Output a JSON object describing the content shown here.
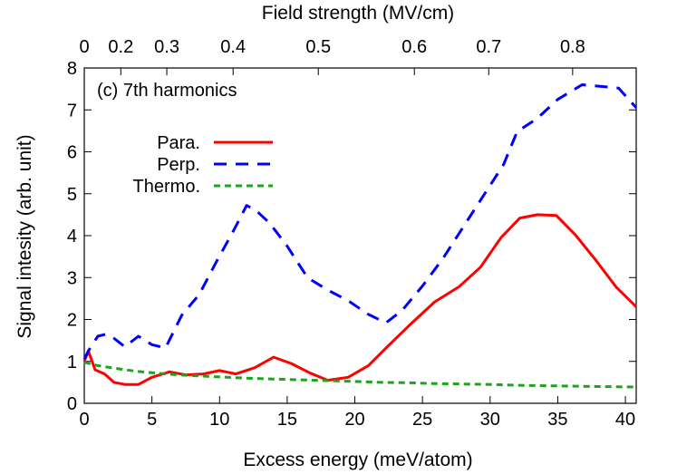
{
  "chart_data": {
    "type": "line",
    "annotation": "(c) 7th harmonics",
    "xlabel": "Excess energy (meV/atom)",
    "ylabel": "Signal intesity (arb. unit)",
    "top_axis_label": "Field strength (MV/cm)",
    "xlim": [
      0,
      40.8
    ],
    "ylim": [
      0,
      8
    ],
    "xticks": [
      0,
      5,
      10,
      15,
      20,
      25,
      30,
      35,
      40
    ],
    "yticks": [
      0,
      1,
      2,
      3,
      4,
      5,
      6,
      7,
      8
    ],
    "top_ticks": [
      {
        "label": "0",
        "x": 0.0
      },
      {
        "label": "0.2",
        "x": 2.7
      },
      {
        "label": "0.3",
        "x": 6.1
      },
      {
        "label": "0.4",
        "x": 11.0
      },
      {
        "label": "0.5",
        "x": 17.3
      },
      {
        "label": "0.6",
        "x": 24.4
      },
      {
        "label": "0.7",
        "x": 29.9
      },
      {
        "label": "0.8",
        "x": 36.1
      }
    ],
    "grid": false,
    "legend_position": "upper-left",
    "series": [
      {
        "name": "Para.",
        "color": "#ff0000",
        "dash": "solid",
        "x": [
          0,
          0.3,
          0.8,
          1.5,
          2.2,
          3.0,
          4.0,
          5.0,
          6.3,
          7.5,
          8.8,
          10.0,
          11.2,
          12.6,
          14.0,
          15.3,
          16.7,
          18.0,
          19.5,
          21.0,
          22.4,
          24.0,
          25.9,
          27.7,
          29.3,
          30.8,
          32.2,
          33.5,
          34.9,
          36.3,
          37.8,
          39.3,
          40.8
        ],
        "y": [
          1.0,
          1.25,
          0.8,
          0.7,
          0.5,
          0.45,
          0.45,
          0.62,
          0.75,
          0.68,
          0.7,
          0.78,
          0.7,
          0.85,
          1.1,
          0.95,
          0.72,
          0.55,
          0.62,
          0.9,
          1.35,
          1.85,
          2.42,
          2.78,
          3.25,
          3.95,
          4.42,
          4.5,
          4.48,
          4.02,
          3.42,
          2.78,
          2.3
        ]
      },
      {
        "name": "Perp.",
        "color": "#0000ff",
        "dash": "dashed",
        "x": [
          0,
          0.3,
          1.0,
          1.6,
          2.2,
          3.0,
          4.0,
          5.0,
          6.0,
          7.2,
          8.5,
          9.8,
          11.0,
          12.0,
          12.7,
          13.7,
          15.0,
          16.5,
          18.0,
          19.5,
          21.0,
          22.3,
          23.5,
          25.0,
          26.5,
          28.0,
          29.5,
          31.0,
          32.0,
          33.5,
          35.0,
          36.8,
          38.5,
          39.5,
          40.8
        ],
        "y": [
          1.05,
          1.25,
          1.6,
          1.65,
          1.55,
          1.35,
          1.6,
          1.4,
          1.32,
          2.1,
          2.6,
          3.4,
          4.1,
          4.72,
          4.6,
          4.3,
          3.75,
          3.0,
          2.7,
          2.45,
          2.12,
          1.92,
          2.22,
          2.8,
          3.45,
          4.2,
          4.95,
          5.7,
          6.48,
          6.8,
          7.25,
          7.6,
          7.55,
          7.52,
          7.05
        ]
      },
      {
        "name": "Thermo.",
        "color": "#22a022",
        "dash": "dotted",
        "x": [
          0,
          1,
          2,
          3,
          4,
          5,
          6,
          8,
          10,
          12,
          14,
          16,
          18,
          20,
          22,
          24,
          26,
          28,
          30,
          32,
          34,
          36,
          38,
          40.8
        ],
        "y": [
          0.98,
          0.9,
          0.85,
          0.8,
          0.76,
          0.73,
          0.7,
          0.66,
          0.63,
          0.6,
          0.58,
          0.56,
          0.54,
          0.52,
          0.5,
          0.49,
          0.47,
          0.46,
          0.45,
          0.43,
          0.42,
          0.41,
          0.4,
          0.39
        ]
      }
    ]
  }
}
